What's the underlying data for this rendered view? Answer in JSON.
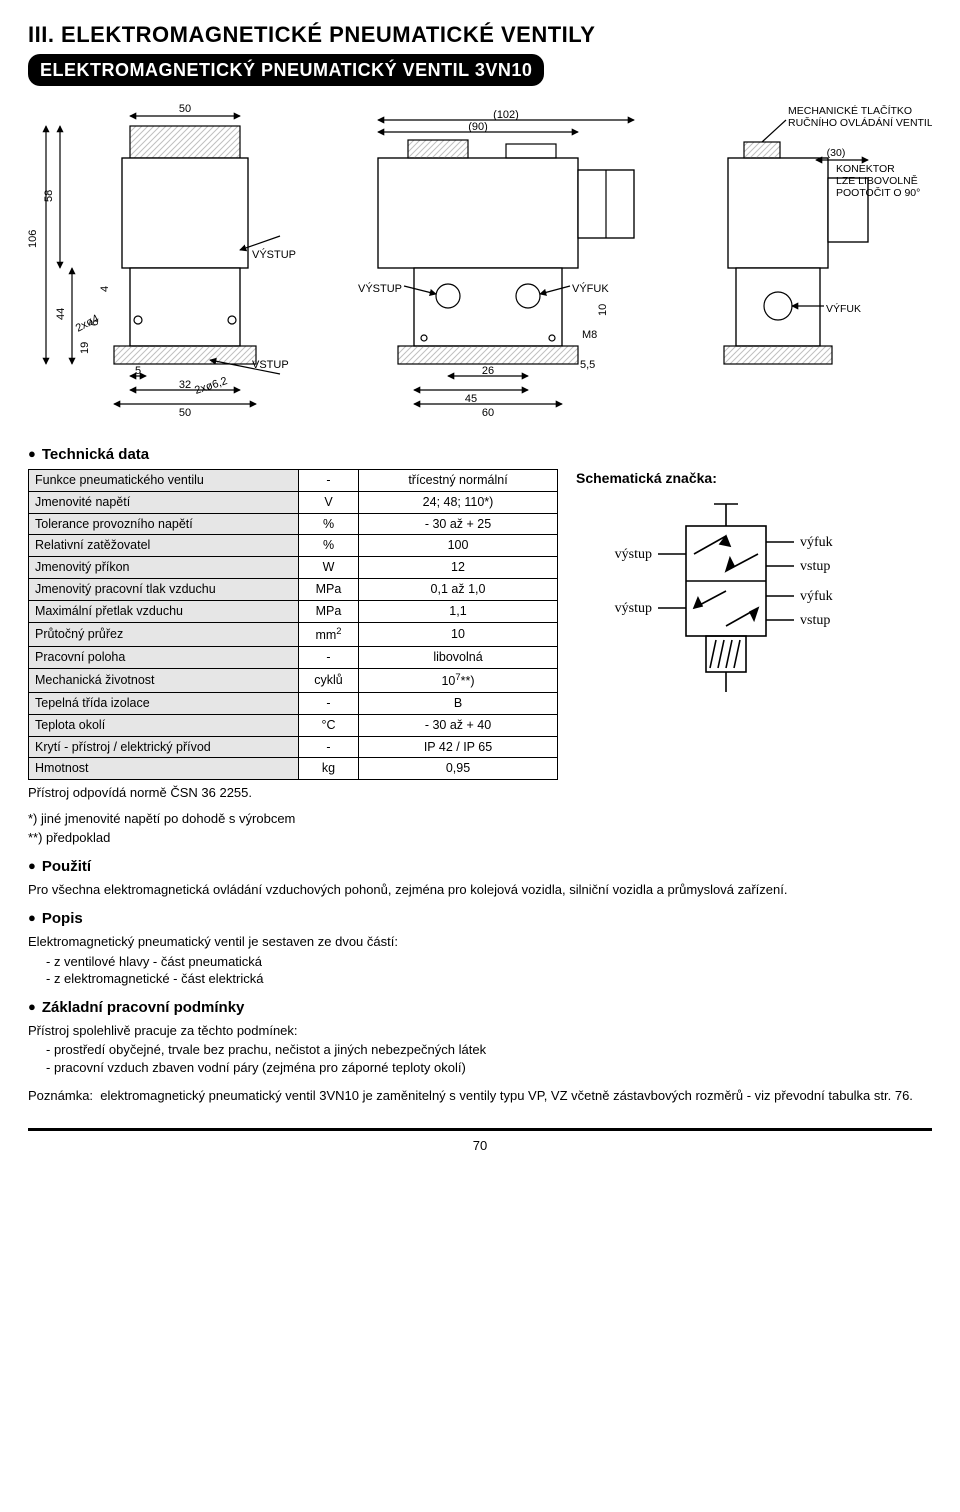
{
  "header": {
    "chapter": "III. ELEKTROMAGNETICKÉ  PNEUMATICKÉ VENTILY",
    "banner": "ELEKTROMAGNETICKÝ PNEUMATICKÝ VENTIL 3VN10"
  },
  "drawing": {
    "front_view": {
      "width_overall": "50",
      "width_body": "32",
      "h_total": "106",
      "h_upper": "58",
      "h_band": "44",
      "gaps": [
        "19",
        "6",
        "4"
      ],
      "hole_note_1": "2xø4",
      "hole_note_2": "2xø6,2",
      "bottom_x": "5",
      "port_in": "VSTUP",
      "port_out": "VÝSTUP"
    },
    "side_view": {
      "dim_102": "(102)",
      "dim_90": "(90)",
      "w60": "60",
      "w45": "45",
      "w26": "26",
      "h10": "10",
      "thread": "M8",
      "off": "5,5",
      "port_out": "VÝSTUP",
      "port_ex": "VÝFUK",
      "note_button_1": "MECHANICKÉ TLAČÍTKO",
      "note_button_2": "RUČNÍHO OVLÁDÁNÍ VENTILU",
      "dim_30": "(30)",
      "note_conn_1": "KONEKTOR",
      "note_conn_2": "LZE LIBOVOLNĚ",
      "note_conn_3": "POOTOČIT O 90°"
    }
  },
  "sections": {
    "tech_data": "Technická data",
    "usage": "Použití",
    "desc": "Popis",
    "cond": "Základní pracovní podmínky"
  },
  "table": {
    "rows": [
      {
        "param": "Funkce pneumatického ventilu",
        "unit": "-",
        "val": "třícestný normální"
      },
      {
        "param": "Jmenovité napětí",
        "unit": "V",
        "val": "24; 48; 110*)"
      },
      {
        "param": "Tolerance provozního napětí",
        "unit": "%",
        "val": "- 30 až + 25"
      },
      {
        "param": "Relativní zatěžovatel",
        "unit": "%",
        "val": "100"
      },
      {
        "param": "Jmenovitý příkon",
        "unit": "W",
        "val": "12"
      },
      {
        "param": "Jmenovitý pracovní tlak vzduchu",
        "unit": "MPa",
        "val": "0,1 až 1,0"
      },
      {
        "param": "Maximální přetlak vzduchu",
        "unit": "MPa",
        "val": "1,1"
      },
      {
        "param": "Průtočný průřez",
        "unit": "mm²",
        "val": "10",
        "unit_html": "mm<sup>2</sup>"
      },
      {
        "param": "Pracovní poloha",
        "unit": "-",
        "val": "libovolná"
      },
      {
        "param": "Mechanická životnost",
        "unit": "cyklů",
        "val": "10⁷**)",
        "val_html": "10<sup>7</sup>**)"
      },
      {
        "param": "Tepelná třída izolace",
        "unit": "-",
        "val": "B"
      },
      {
        "param": "Teplota okolí",
        "unit": "°C",
        "val": "- 30 až + 40"
      },
      {
        "param": "Krytí - přístroj / elektrický přívod",
        "unit": "-",
        "val": "IP 42 / IP 65"
      },
      {
        "param": "Hmotnost",
        "unit": "kg",
        "val": "0,95"
      }
    ]
  },
  "schematic": {
    "title": "Schematická značka:",
    "labels": {
      "out": "výstup",
      "ex": "výfuk",
      "in": "vstup"
    }
  },
  "text": {
    "norm": "Přístroj odpovídá normě ČSN 36 2255.",
    "foot1": "*) jiné jmenovité napětí po dohodě s výrobcem",
    "foot2": "**) předpoklad",
    "usage_p": "Pro všechna elektromagnetická ovládání vzduchových pohonů, zejména pro kolejová vozidla, silniční vozidla a průmyslová zařízení.",
    "desc_intro": "Elektromagnetický pneumatický ventil je sestaven ze dvou částí:",
    "desc_l1": "- z ventilové hlavy - část pneumatická",
    "desc_l2": "- z elektromagnetické - část elektrická",
    "cond_intro": "Přístroj spolehlivě pracuje za těchto podmínek:",
    "cond_l1": "- prostředí obyčejné, trvale bez prachu, nečistot a jiných nebezpečných látek",
    "cond_l2": "- pracovní vzduch zbaven vodní páry (zejména pro záporné teploty okolí)",
    "note_label": "Poznámka:",
    "note_body": "elektromagnetický pneumatický ventil 3VN10 je zaměnitelný s ventily typu VP, VZ včetně zástavbových rozměrů - viz převodní tabulka str. 76."
  },
  "page": "70",
  "style": {
    "bg": "#ffffff",
    "text_color": "#000000",
    "table_header_bg": "#e6e6e6",
    "line_color": "#000000",
    "font_main": "Arial, Helvetica, sans-serif",
    "font_serif": "Georgia, 'Times New Roman', serif",
    "font_size_body": 13,
    "font_size_chapter": 22,
    "font_size_banner": 18,
    "drawing_stroke": 1.2,
    "hatch_color": "#bfbfbf"
  }
}
